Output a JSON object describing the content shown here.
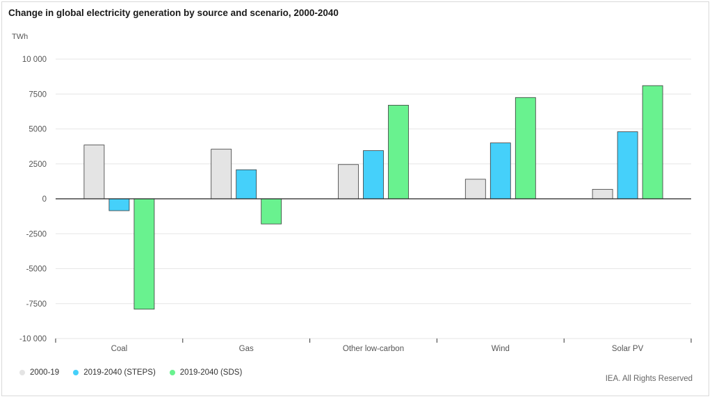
{
  "chart_data": {
    "type": "bar",
    "title": "Change in global electricity generation by source and scenario, 2000-2040",
    "unit": "TWh",
    "categories": [
      "Coal",
      "Gas",
      "Other low-carbon",
      "Wind",
      "Solar PV"
    ],
    "series": [
      {
        "name": "2000-19",
        "color": "#e4e4e4",
        "values": [
          3850,
          3550,
          2450,
          1400,
          680
        ]
      },
      {
        "name": "2019-2040 (STEPS)",
        "color": "#45d0fa",
        "values": [
          -850,
          2080,
          3450,
          4000,
          4800
        ]
      },
      {
        "name": "2019-2040 (SDS)",
        "color": "#69f28f",
        "values": [
          -7900,
          -1800,
          6700,
          7250,
          8100
        ]
      }
    ],
    "ylim": [
      -10000,
      10000
    ],
    "yticks": [
      10000,
      7500,
      5000,
      2500,
      0,
      -2500,
      -5000,
      -7500,
      -10000
    ],
    "ytick_labels": [
      "10 000",
      "7500",
      "5000",
      "2500",
      "0",
      "-2500",
      "-5000",
      "-7500",
      "-10 000"
    ],
    "grid": true,
    "legend_position": "bottom-left"
  },
  "footer": {
    "credit": "IEA. All Rights Reserved"
  }
}
